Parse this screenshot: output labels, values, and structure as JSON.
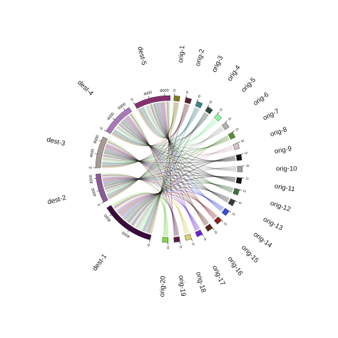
{
  "diagram": {
    "type": "chord",
    "destinations": [
      {
        "name": "dest-1",
        "color": "#3a0b3c",
        "ticks": [
          "0",
          "4000",
          "8000"
        ]
      },
      {
        "name": "dest-2",
        "color": "#8a5a98",
        "ticks": [
          "0",
          "4000",
          "8000"
        ]
      },
      {
        "name": "dest-3",
        "color": "#a89a94",
        "ticks": [
          "0",
          "4000",
          "8000"
        ]
      },
      {
        "name": "dest-4",
        "color": "#a978b8",
        "ticks": [
          "0",
          "4000",
          "8000"
        ]
      },
      {
        "name": "dest-5",
        "color": "#86306e",
        "ticks": [
          "0",
          "4000",
          "8000"
        ]
      }
    ],
    "origins": [
      {
        "name": "orig-1",
        "color": "#7e7a1c",
        "tick": "0"
      },
      {
        "name": "orig-2",
        "color": "#5a2230",
        "tick": "0"
      },
      {
        "name": "orig-3",
        "color": "#3f8487",
        "tick": "0"
      },
      {
        "name": "orig-4",
        "color": "#2c4a3c",
        "tick": "0"
      },
      {
        "name": "orig-5",
        "color": "#8ff0a8",
        "tick": "0"
      },
      {
        "name": "orig-6",
        "color": "#b0b0b0",
        "tick": "0"
      },
      {
        "name": "orig-7",
        "color": "#5a8f3a",
        "tick": "0"
      },
      {
        "name": "orig-8",
        "color": "#d8c0c8",
        "tick": "0"
      },
      {
        "name": "orig-9",
        "color": "#111111",
        "tick": "0"
      },
      {
        "name": "orig-10",
        "color": "#a0a0a0",
        "tick": "0"
      },
      {
        "name": "orig-11",
        "color": "#111111",
        "tick": "0"
      },
      {
        "name": "orig-12",
        "color": "#3f7040",
        "tick": "0"
      },
      {
        "name": "orig-13",
        "color": "#3a3a3a",
        "tick": "0"
      },
      {
        "name": "orig-14",
        "color": "#3a4ad8",
        "tick": "0"
      },
      {
        "name": "orig-15",
        "color": "#8a2020",
        "tick": "0"
      },
      {
        "name": "orig-16",
        "color": "#5a2818",
        "tick": "0"
      },
      {
        "name": "orig-17",
        "color": "#6a1fd8",
        "tick": "0"
      },
      {
        "name": "orig-18",
        "color": "#d8d070",
        "tick": "0"
      },
      {
        "name": "orig-19",
        "color": "#5a1848",
        "tick": "0"
      },
      {
        "name": "orig-20",
        "color": "#7ad84a",
        "tick": "0"
      }
    ]
  }
}
